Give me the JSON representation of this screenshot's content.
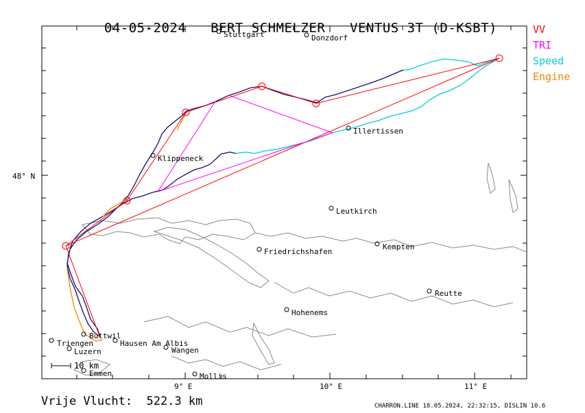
{
  "header": {
    "date": "04-05-2024",
    "pilot": "BERT SCHMELZER",
    "glider": "VENTUS 3T (D-KSBT)"
  },
  "legend": [
    {
      "label": "VV",
      "color": "#ff0000"
    },
    {
      "label": "TRI",
      "color": "#ff00ff"
    },
    {
      "label": "Speed",
      "color": "#00ccdd"
    },
    {
      "label": "Engine",
      "color": "#ff8000"
    }
  ],
  "axes": {
    "x_ticks": [
      "9° E",
      "10° E",
      "11° E"
    ],
    "y_ticks": [
      "48° N"
    ]
  },
  "places": [
    {
      "name": "Stuttgart"
    },
    {
      "name": "Donzdorf"
    },
    {
      "name": "Illertissen"
    },
    {
      "name": "Klippeneck"
    },
    {
      "name": "Leutkirch"
    },
    {
      "name": "Friedrichshafen"
    },
    {
      "name": "Kempten"
    },
    {
      "name": "Reutte"
    },
    {
      "name": "Hohenems"
    },
    {
      "name": "Buttwil"
    },
    {
      "name": "Triengen"
    },
    {
      "name": "Luzern"
    },
    {
      "name": "Hausen Am Albis"
    },
    {
      "name": "Wangen"
    },
    {
      "name": "Emmen"
    },
    {
      "name": "Mollis"
    }
  ],
  "scale_bar": "10 km",
  "footer": {
    "distance": "Vrije Vlucht:  522.3 km",
    "credit": "CHARRON.LINE 18.05.2024, 22:32:15, DISLIN 10.6"
  }
}
